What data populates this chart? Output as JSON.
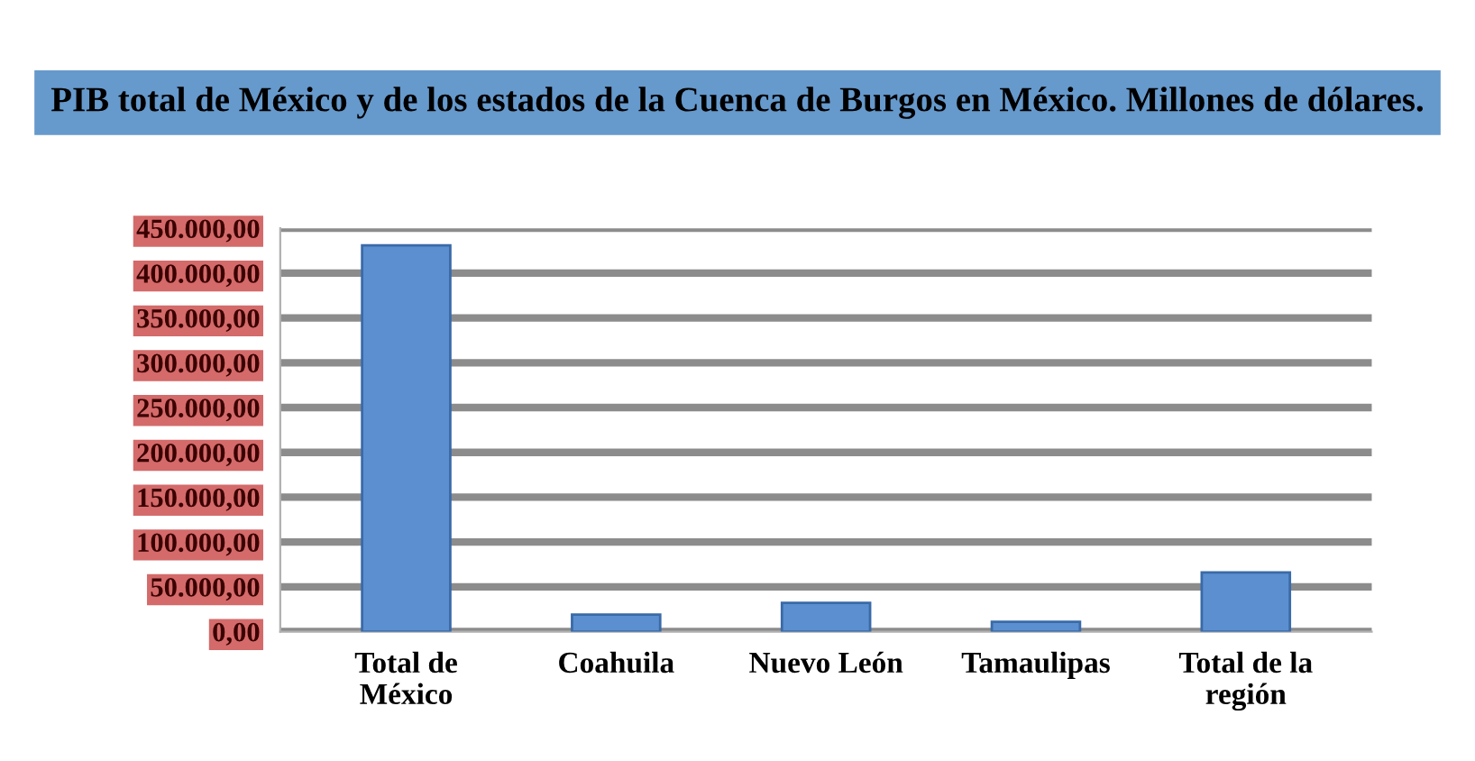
{
  "chart_data": {
    "type": "bar",
    "title": "PIB total de México y de los estados de la Cuenca de Burgos en México. Millones de dólares.",
    "categories": [
      "Total de\nMéxico",
      "Coahuila",
      "Nuevo León",
      "Tamaulipas",
      "Total de la\nregión"
    ],
    "values": [
      431000,
      19000,
      32000,
      11000,
      66000
    ],
    "color": "#5b8fcf",
    "ylim": [
      0,
      450000
    ],
    "yticks": [
      {
        "value": 0,
        "label": "0,00"
      },
      {
        "value": 50000,
        "label": "50.000,00"
      },
      {
        "value": 100000,
        "label": "100.000,00"
      },
      {
        "value": 150000,
        "label": "150.000,00"
      },
      {
        "value": 200000,
        "label": "200.000,00"
      },
      {
        "value": 250000,
        "label": "250.000,00"
      },
      {
        "value": 300000,
        "label": "300.000,00"
      },
      {
        "value": 350000,
        "label": "350.000,00"
      },
      {
        "value": 400000,
        "label": "400.000,00"
      },
      {
        "value": 450000,
        "label": "450.000,00"
      }
    ],
    "grid": "y"
  }
}
